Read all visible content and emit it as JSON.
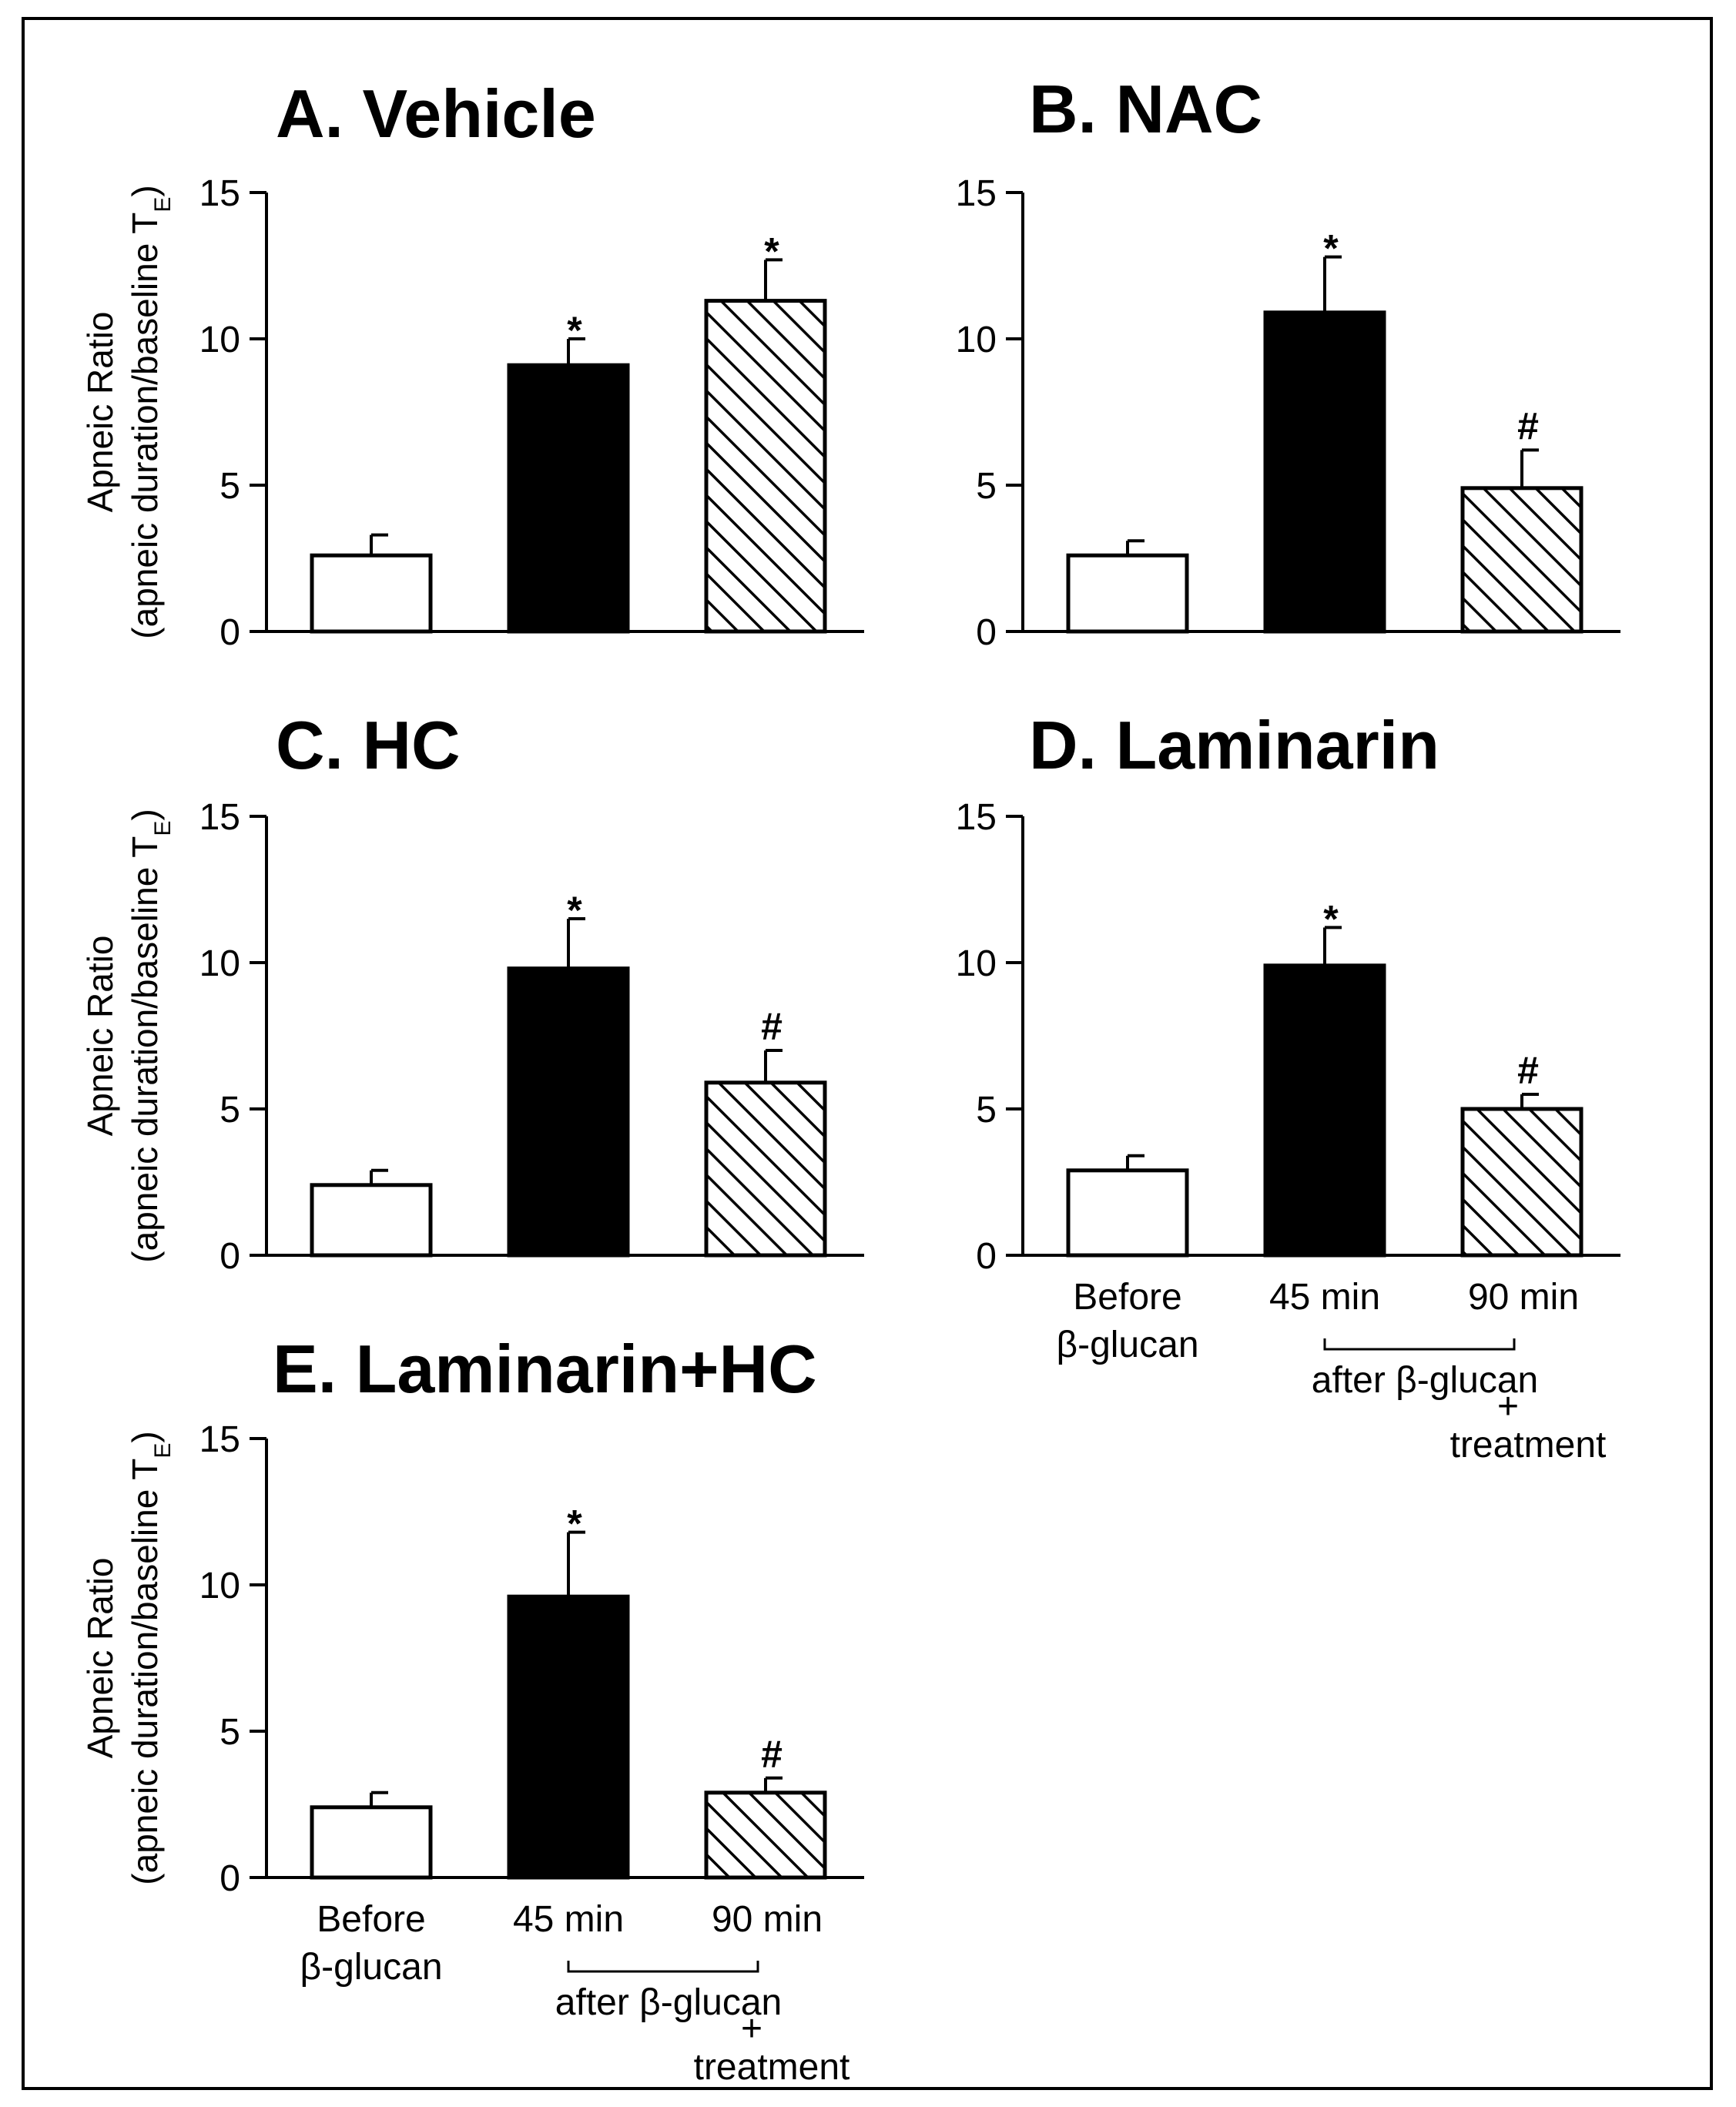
{
  "colors": {
    "before": "#ffffff",
    "after45": "#000000",
    "after90": "hatch",
    "axis": "#000000"
  },
  "shared": {
    "ylabel_line1": "Apneic Ratio",
    "ylabel_line2": "(apneic duration/baseline T",
    "ylabel_sub": "E",
    "ylabel_close": ")",
    "category_before": [
      "Before",
      "β-glucan"
    ],
    "category_45": "45 min",
    "category_90": "90 min",
    "bracket_label": "after β-glucan",
    "plus": "+",
    "treatment": "treatment"
  },
  "chart_data": [
    {
      "panel": "A",
      "type": "bar",
      "title": "A. Vehicle",
      "categories": [
        "Before β-glucan",
        "45 min",
        "90 min"
      ],
      "values": [
        2.6,
        9.1,
        11.3
      ],
      "errors": [
        0.7,
        0.9,
        1.4
      ],
      "marks": [
        "",
        "*",
        "*"
      ],
      "ylim": [
        0,
        15
      ],
      "yticks": [
        0,
        5,
        10,
        15
      ],
      "show_xlabels": false
    },
    {
      "panel": "B",
      "type": "bar",
      "title": "B. NAC",
      "categories": [
        "Before β-glucan",
        "45 min",
        "90 min"
      ],
      "values": [
        2.6,
        10.9,
        4.9
      ],
      "errors": [
        0.5,
        1.9,
        1.3
      ],
      "marks": [
        "",
        "*",
        "#"
      ],
      "ylim": [
        0,
        15
      ],
      "yticks": [
        0,
        5,
        10,
        15
      ],
      "show_xlabels": false
    },
    {
      "panel": "C",
      "type": "bar",
      "title": "C. HC",
      "categories": [
        "Before β-glucan",
        "45 min",
        "90 min"
      ],
      "values": [
        2.4,
        9.8,
        5.9
      ],
      "errors": [
        0.5,
        1.7,
        1.1
      ],
      "marks": [
        "",
        "*",
        "#"
      ],
      "ylim": [
        0,
        15
      ],
      "yticks": [
        0,
        5,
        10,
        15
      ],
      "show_xlabels": false
    },
    {
      "panel": "D",
      "type": "bar",
      "title": "D. Laminarin",
      "categories": [
        "Before β-glucan",
        "45 min",
        "90 min"
      ],
      "values": [
        2.9,
        9.9,
        5.0
      ],
      "errors": [
        0.5,
        1.3,
        0.5
      ],
      "marks": [
        "",
        "*",
        "#"
      ],
      "ylim": [
        0,
        15
      ],
      "yticks": [
        0,
        5,
        10,
        15
      ],
      "show_xlabels": true
    },
    {
      "panel": "E",
      "type": "bar",
      "title": "E. Laminarin+HC",
      "categories": [
        "Before β-glucan",
        "45 min",
        "90 min"
      ],
      "values": [
        2.4,
        9.6,
        2.9
      ],
      "errors": [
        0.5,
        2.2,
        0.5
      ],
      "marks": [
        "",
        "*",
        "#"
      ],
      "ylim": [
        0,
        15
      ],
      "yticks": [
        0,
        5,
        10,
        15
      ],
      "show_xlabels": true
    }
  ]
}
